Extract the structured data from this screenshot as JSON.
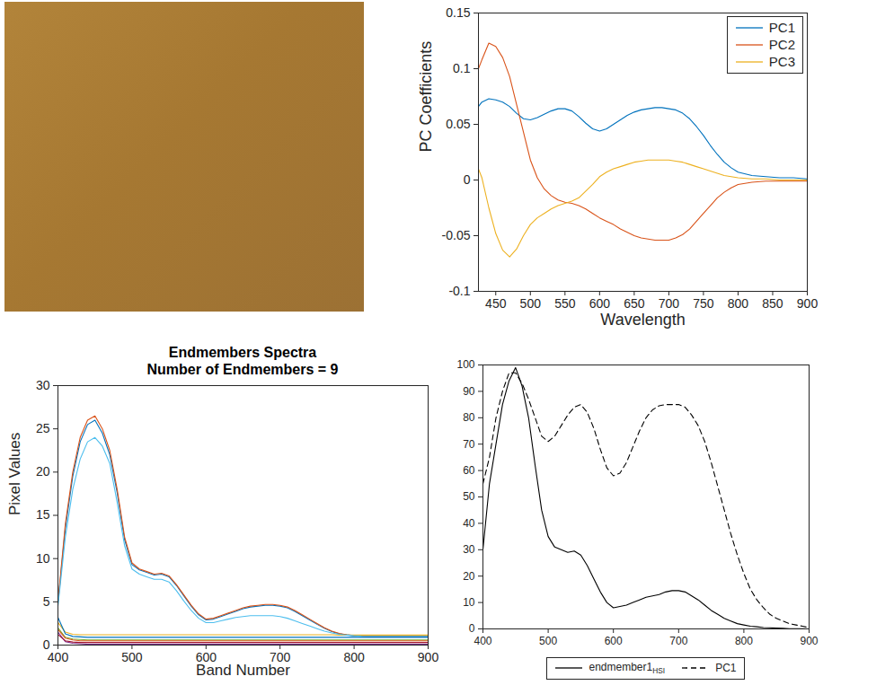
{
  "chart_data": [
    {
      "type": "line",
      "x_label": "Wavelength",
      "y_label": "PC Coefficients",
      "xlim": [
        425,
        900
      ],
      "xticks": [
        450,
        500,
        550,
        600,
        650,
        700,
        750,
        800,
        850,
        900
      ],
      "ylim": [
        -0.1,
        0.15
      ],
      "yticks": [
        -0.1,
        -0.05,
        0,
        0.05,
        0.1,
        0.15
      ],
      "grid": false,
      "legend": "northeast",
      "x": [
        425,
        430,
        440,
        450,
        460,
        470,
        480,
        490,
        500,
        510,
        520,
        530,
        540,
        550,
        560,
        570,
        580,
        590,
        600,
        610,
        620,
        630,
        640,
        650,
        660,
        670,
        680,
        690,
        700,
        710,
        720,
        730,
        740,
        750,
        760,
        770,
        780,
        790,
        800,
        820,
        840,
        860,
        880,
        900
      ],
      "series": [
        {
          "name": "PC1",
          "color": "#0072BD",
          "line_style": "solid",
          "values": [
            0.066,
            0.07,
            0.073,
            0.072,
            0.07,
            0.066,
            0.06,
            0.055,
            0.054,
            0.056,
            0.059,
            0.062,
            0.064,
            0.064,
            0.062,
            0.057,
            0.051,
            0.046,
            0.044,
            0.046,
            0.05,
            0.054,
            0.058,
            0.061,
            0.063,
            0.064,
            0.065,
            0.065,
            0.064,
            0.063,
            0.06,
            0.055,
            0.048,
            0.04,
            0.031,
            0.023,
            0.016,
            0.011,
            0.007,
            0.004,
            0.003,
            0.002,
            0.002,
            0.001
          ]
        },
        {
          "name": "PC2",
          "color": "#D95319",
          "line_style": "solid",
          "values": [
            0.1,
            0.108,
            0.123,
            0.12,
            0.11,
            0.093,
            0.068,
            0.043,
            0.018,
            0.002,
            -0.008,
            -0.014,
            -0.018,
            -0.02,
            -0.021,
            -0.023,
            -0.026,
            -0.03,
            -0.034,
            -0.037,
            -0.04,
            -0.044,
            -0.047,
            -0.05,
            -0.052,
            -0.053,
            -0.054,
            -0.054,
            -0.054,
            -0.052,
            -0.049,
            -0.044,
            -0.037,
            -0.03,
            -0.023,
            -0.016,
            -0.011,
            -0.007,
            -0.004,
            -0.002,
            -0.001,
            -0.001,
            -0.001,
            -0.001
          ]
        },
        {
          "name": "PC3",
          "color": "#EDB120",
          "line_style": "solid",
          "values": [
            0.01,
            0.002,
            -0.025,
            -0.048,
            -0.063,
            -0.069,
            -0.062,
            -0.05,
            -0.04,
            -0.034,
            -0.03,
            -0.026,
            -0.023,
            -0.021,
            -0.019,
            -0.016,
            -0.01,
            -0.004,
            0.003,
            0.007,
            0.01,
            0.012,
            0.014,
            0.016,
            0.017,
            0.018,
            0.018,
            0.018,
            0.018,
            0.017,
            0.016,
            0.014,
            0.012,
            0.01,
            0.008,
            0.006,
            0.004,
            0.003,
            0.002,
            0.001,
            0.001,
            0,
            0,
            0
          ]
        }
      ]
    },
    {
      "type": "line",
      "title": "Endmembers Spectra",
      "subtitle": "Number of Endmembers = 9",
      "x_label": "Band Number",
      "y_label": "Pixel Values",
      "xlim": [
        400,
        900
      ],
      "xticks": [
        400,
        500,
        600,
        700,
        800,
        900
      ],
      "ylim": [
        0,
        30
      ],
      "yticks": [
        0,
        5,
        10,
        15,
        20,
        25,
        30
      ],
      "grid": false,
      "x": [
        400,
        410,
        420,
        430,
        440,
        450,
        460,
        470,
        480,
        490,
        500,
        510,
        520,
        530,
        540,
        550,
        560,
        570,
        580,
        590,
        600,
        610,
        620,
        630,
        640,
        650,
        660,
        670,
        680,
        690,
        700,
        710,
        720,
        730,
        740,
        750,
        760,
        770,
        780,
        790,
        800,
        810,
        820,
        830,
        840,
        850,
        860,
        870,
        880,
        890,
        900
      ],
      "series": [
        {
          "color": "#0072BD",
          "line_style": "solid",
          "values": [
            4.8,
            13.5,
            19.5,
            23.5,
            25.5,
            26.0,
            24.5,
            22.0,
            17.6,
            12.2,
            9.3,
            8.7,
            8.4,
            8.1,
            8.2,
            7.9,
            6.9,
            5.7,
            4.5,
            3.5,
            2.9,
            3.0,
            3.3,
            3.6,
            3.9,
            4.2,
            4.4,
            4.5,
            4.6,
            4.6,
            4.5,
            4.3,
            3.9,
            3.4,
            2.9,
            2.4,
            1.95,
            1.55,
            1.3,
            1.18,
            1.08,
            1.03,
            1.0,
            1.0,
            1.0,
            1.0,
            1.0,
            1.0,
            1.0,
            1.0,
            1.0
          ]
        },
        {
          "color": "#D95319",
          "line_style": "solid",
          "values": [
            5.0,
            14.0,
            20.0,
            24.0,
            26.0,
            26.5,
            25.0,
            22.5,
            18.0,
            12.5,
            9.5,
            8.8,
            8.5,
            8.2,
            8.3,
            8.0,
            7.0,
            5.8,
            4.6,
            3.6,
            3.0,
            3.1,
            3.4,
            3.7,
            4.0,
            4.3,
            4.5,
            4.6,
            4.7,
            4.7,
            4.6,
            4.4,
            4.0,
            3.5,
            3.0,
            2.5,
            2.0,
            1.6,
            1.35,
            1.2,
            1.1,
            1.05,
            1.0,
            1.0,
            1.0,
            1.0,
            1.0,
            1.0,
            1.0,
            1.0,
            1.0
          ]
        },
        {
          "color": "#EDB120",
          "line_style": "solid",
          "values": [
            2.6,
            1.5,
            1.25,
            1.2,
            1.2,
            1.2,
            1.2,
            1.2,
            1.2,
            1.2,
            1.2,
            1.2,
            1.2,
            1.2,
            1.2,
            1.2,
            1.2,
            1.2,
            1.2,
            1.2,
            1.2,
            1.2,
            1.2,
            1.2,
            1.2,
            1.2,
            1.2,
            1.2,
            1.2,
            1.2,
            1.2,
            1.2,
            1.2,
            1.2,
            1.2,
            1.2,
            1.2,
            1.2,
            1.15,
            1.15,
            1.15,
            1.15,
            1.15,
            1.15,
            1.15,
            1.15,
            1.15,
            1.15,
            1.15,
            1.15,
            1.15
          ]
        },
        {
          "color": "#7E2F8E",
          "line_style": "solid",
          "values": [
            1.5,
            0.4,
            0.2,
            0.15,
            0.1,
            0.1,
            0.1,
            0.1,
            0.1,
            0.1,
            0.1,
            0.1,
            0.1,
            0.1,
            0.1,
            0.1,
            0.1,
            0.1,
            0.1,
            0.1,
            0.1,
            0.1,
            0.1,
            0.1,
            0.1,
            0.1,
            0.1,
            0.1,
            0.1,
            0.1,
            0.1,
            0.1,
            0.1,
            0.1,
            0.1,
            0.1,
            0.1,
            0.1,
            0.1,
            0.1,
            0.1,
            0.1,
            0.1,
            0.1,
            0.1,
            0.1,
            0.1,
            0.1,
            0.1,
            0.1,
            0.1
          ]
        },
        {
          "color": "#77AC30",
          "line_style": "solid",
          "values": [
            2.0,
            0.9,
            0.7,
            0.65,
            0.6,
            0.6,
            0.6,
            0.6,
            0.6,
            0.6,
            0.6,
            0.6,
            0.6,
            0.6,
            0.6,
            0.6,
            0.6,
            0.6,
            0.6,
            0.6,
            0.6,
            0.6,
            0.6,
            0.6,
            0.6,
            0.6,
            0.6,
            0.6,
            0.6,
            0.6,
            0.6,
            0.6,
            0.6,
            0.6,
            0.6,
            0.6,
            0.6,
            0.6,
            0.6,
            0.6,
            0.6,
            0.6,
            0.6,
            0.6,
            0.6,
            0.6,
            0.6,
            0.6,
            0.6,
            0.6,
            0.6
          ]
        },
        {
          "color": "#4DBEEE",
          "line_style": "solid",
          "values": [
            4.5,
            12.5,
            18.0,
            21.5,
            23.5,
            24.0,
            23.0,
            21.0,
            16.5,
            11.5,
            8.8,
            8.2,
            7.9,
            7.6,
            7.6,
            7.3,
            6.3,
            5.1,
            4.0,
            3.1,
            2.6,
            2.6,
            2.8,
            3.0,
            3.2,
            3.3,
            3.4,
            3.4,
            3.4,
            3.4,
            3.3,
            3.1,
            2.8,
            2.5,
            2.2,
            1.9,
            1.6,
            1.4,
            1.25,
            1.15,
            1.08,
            1.03,
            1.0,
            1.0,
            1.0,
            1.0,
            1.0,
            1.0,
            1.0,
            1.0,
            1.0
          ]
        },
        {
          "color": "#A2142F",
          "line_style": "solid",
          "values": [
            1.2,
            0.5,
            0.35,
            0.3,
            0.3,
            0.3,
            0.3,
            0.3,
            0.3,
            0.3,
            0.3,
            0.3,
            0.3,
            0.3,
            0.3,
            0.3,
            0.3,
            0.3,
            0.3,
            0.3,
            0.3,
            0.3,
            0.3,
            0.3,
            0.3,
            0.3,
            0.3,
            0.3,
            0.3,
            0.3,
            0.3,
            0.3,
            0.3,
            0.3,
            0.3,
            0.3,
            0.3,
            0.3,
            0.3,
            0.3,
            0.3,
            0.3,
            0.3,
            0.3,
            0.3,
            0.3,
            0.3,
            0.3,
            0.3,
            0.3,
            0.3
          ]
        },
        {
          "color": "#0072BD",
          "line_style": "solid",
          "values": [
            3.2,
            1.3,
            1.0,
            0.95,
            0.9,
            0.9,
            0.9,
            0.9,
            0.9,
            0.9,
            0.9,
            0.9,
            0.9,
            0.9,
            0.9,
            0.9,
            0.9,
            0.9,
            0.9,
            0.9,
            0.9,
            0.9,
            0.9,
            0.9,
            0.9,
            0.9,
            0.9,
            0.9,
            0.9,
            0.9,
            0.9,
            0.9,
            0.9,
            0.9,
            0.9,
            0.9,
            0.9,
            0.9,
            0.9,
            0.9,
            0.9,
            0.9,
            0.9,
            0.9,
            0.9,
            0.9,
            0.9,
            0.9,
            0.9,
            0.9,
            0.9
          ]
        },
        {
          "color": "#D95319",
          "line_style": "solid",
          "values": [
            1.8,
            0.8,
            0.6,
            0.5,
            0.5,
            0.5,
            0.5,
            0.5,
            0.5,
            0.5,
            0.5,
            0.5,
            0.5,
            0.5,
            0.5,
            0.5,
            0.5,
            0.5,
            0.5,
            0.5,
            0.5,
            0.5,
            0.5,
            0.5,
            0.5,
            0.5,
            0.5,
            0.5,
            0.5,
            0.5,
            0.5,
            0.5,
            0.5,
            0.5,
            0.5,
            0.5,
            0.5,
            0.5,
            0.5,
            0.5,
            0.5,
            0.5,
            0.5,
            0.5,
            0.5,
            0.5,
            0.5,
            0.5,
            0.5,
            0.5,
            0.5
          ]
        }
      ]
    },
    {
      "type": "line",
      "xlim": [
        400,
        900
      ],
      "xticks": [
        400,
        500,
        600,
        700,
        800,
        900
      ],
      "ylim": [
        0,
        100
      ],
      "yticks": [
        0,
        10,
        20,
        30,
        40,
        50,
        60,
        70,
        80,
        90,
        100
      ],
      "grid": false,
      "legend": "bottom",
      "x": [
        400,
        410,
        420,
        430,
        440,
        450,
        460,
        470,
        480,
        490,
        500,
        510,
        520,
        530,
        540,
        550,
        560,
        570,
        580,
        590,
        600,
        610,
        620,
        630,
        640,
        650,
        660,
        670,
        680,
        690,
        700,
        710,
        720,
        730,
        740,
        750,
        760,
        770,
        780,
        790,
        800,
        810,
        820,
        830,
        840,
        850,
        860,
        870,
        880,
        890,
        900
      ],
      "series": [
        {
          "name": "endmember1HSI",
          "color": "#000000",
          "line_style": "solid",
          "values": [
            30,
            55,
            70,
            85,
            94,
            99,
            92,
            80,
            62,
            45,
            35,
            31,
            30,
            29,
            29.5,
            28,
            24,
            19,
            14,
            10,
            8,
            8.5,
            9,
            10,
            11,
            12,
            12.5,
            13,
            14,
            14.5,
            14.5,
            14,
            12.5,
            11,
            9,
            7,
            5.5,
            4,
            3,
            2,
            1.5,
            1,
            0.8,
            0.5,
            0.4,
            0.3,
            0.2,
            0.1,
            0.1,
            0.05,
            0
          ]
        },
        {
          "name": "PC1",
          "color": "#000000",
          "line_style": "dashed",
          "values": [
            55,
            65,
            80,
            90,
            97,
            97,
            93,
            87,
            80,
            73,
            71,
            73,
            77,
            81,
            84,
            85,
            82,
            76,
            68,
            61,
            58,
            59,
            63,
            69,
            75,
            80,
            83,
            84.5,
            85,
            85,
            85,
            84,
            81,
            77,
            71,
            63,
            54,
            45,
            36,
            28,
            21,
            15,
            11,
            8,
            5.5,
            4,
            3,
            2,
            1.5,
            1,
            0.5
          ]
        }
      ]
    }
  ]
}
